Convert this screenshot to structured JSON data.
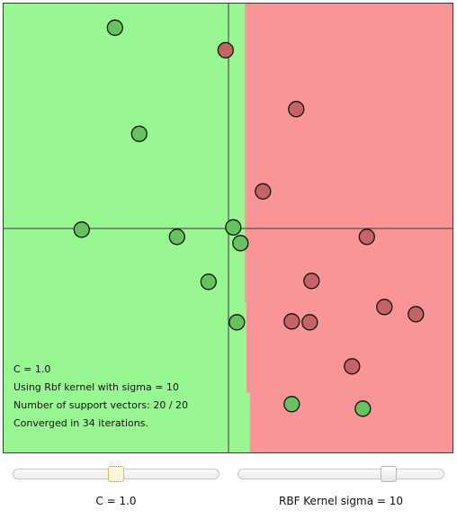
{
  "colors": {
    "class_a_region": "#99f793",
    "class_b_region": "#f99597",
    "class_a_point": "#66c25d",
    "class_b_point": "#c56464",
    "axis": "#555555",
    "boundary_step": "#96f893"
  },
  "plot": {
    "x_domain": [
      -1,
      1
    ],
    "y_domain": [
      -1,
      1
    ],
    "boundary_x_by_y": [
      [
        1.0,
        0.073
      ],
      [
        -0.33,
        0.073
      ],
      [
        -0.33,
        0.079
      ],
      [
        -0.73,
        0.079
      ],
      [
        -0.73,
        0.095
      ],
      [
        -1.0,
        0.095
      ]
    ],
    "points": [
      {
        "x": -0.505,
        "y": 0.893,
        "cls": "a"
      },
      {
        "x": -0.013,
        "y": 0.793,
        "cls": "b"
      },
      {
        "x": -0.397,
        "y": 0.421,
        "cls": "a"
      },
      {
        "x": 0.301,
        "y": 0.531,
        "cls": "b"
      },
      {
        "x": 0.153,
        "y": 0.165,
        "cls": "b"
      },
      {
        "x": -0.653,
        "y": -0.005,
        "cls": "a"
      },
      {
        "x": -0.229,
        "y": -0.037,
        "cls": "a"
      },
      {
        "x": 0.021,
        "y": 0.005,
        "cls": "a"
      },
      {
        "x": 0.053,
        "y": -0.065,
        "cls": "a"
      },
      {
        "x": 0.615,
        "y": -0.037,
        "cls": "b"
      },
      {
        "x": -0.089,
        "y": -0.237,
        "cls": "a"
      },
      {
        "x": 0.369,
        "y": -0.233,
        "cls": "b"
      },
      {
        "x": 0.037,
        "y": -0.417,
        "cls": "a"
      },
      {
        "x": 0.281,
        "y": -0.413,
        "cls": "b"
      },
      {
        "x": 0.361,
        "y": -0.417,
        "cls": "b"
      },
      {
        "x": 0.693,
        "y": -0.349,
        "cls": "b"
      },
      {
        "x": 0.833,
        "y": -0.381,
        "cls": "b"
      },
      {
        "x": 0.549,
        "y": -0.613,
        "cls": "b"
      },
      {
        "x": 0.281,
        "y": -0.781,
        "cls": "a"
      },
      {
        "x": 0.597,
        "y": -0.801,
        "cls": "a"
      }
    ]
  },
  "info": {
    "c_line": "C = 1.0",
    "kernel_line": "Using Rbf kernel with sigma = 10",
    "sv_line": "Number of support vectors: 20 / 20",
    "converged_line": "Converged in 34 iterations."
  },
  "controls": {
    "c_slider": {
      "label": "C = 1.0",
      "value": 0.5
    },
    "sigma_slider": {
      "label": "RBF Kernel sigma = 10",
      "value": 0.75
    }
  }
}
